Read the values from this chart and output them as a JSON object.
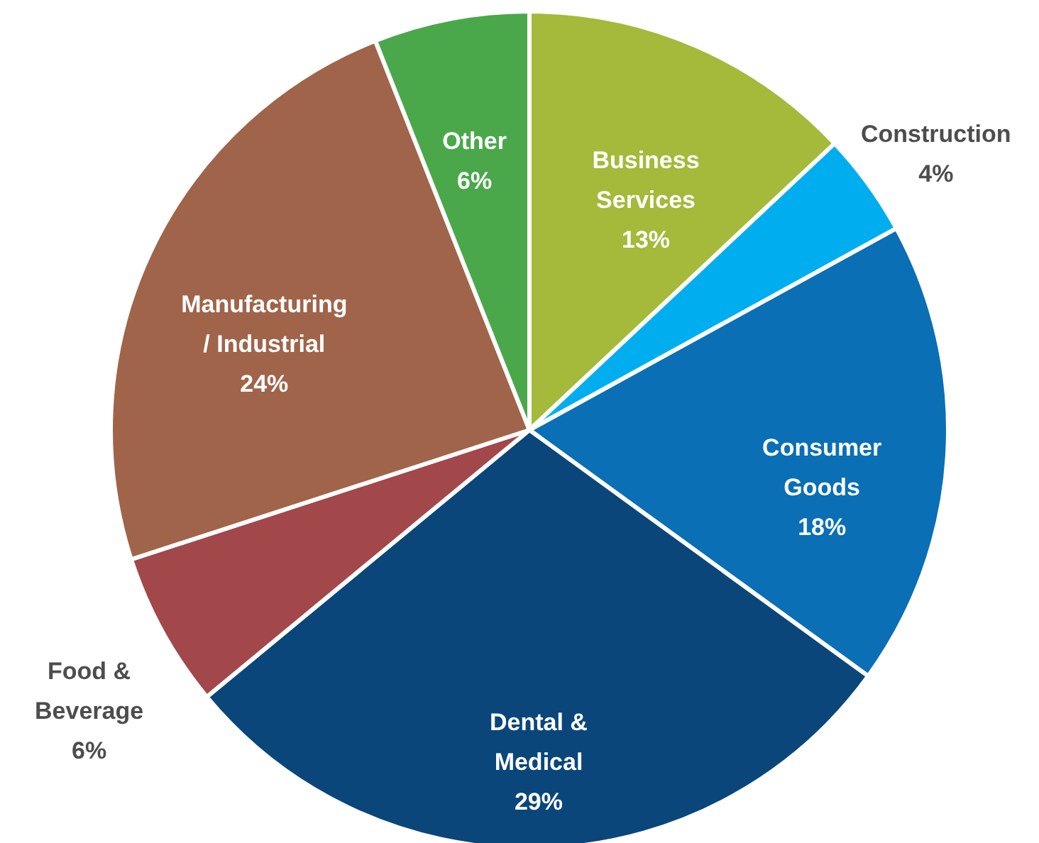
{
  "chart_data": {
    "type": "pie",
    "categories": [
      "Business Services",
      "Construction",
      "Consumer Goods",
      "Dental & Medical",
      "Food & Beverage",
      "Manufacturing / Industrial",
      "Other"
    ],
    "values": [
      13,
      4,
      18,
      29,
      6,
      24,
      6
    ],
    "value_labels": [
      "13%",
      "4%",
      "18%",
      "29%",
      "6%",
      "24%",
      "6%"
    ],
    "colors": [
      "#a5b93a",
      "#00aeef",
      "#0a6fb5",
      "#0b467a",
      "#a2474a",
      "#a0644a",
      "#4aa84a"
    ]
  }
}
